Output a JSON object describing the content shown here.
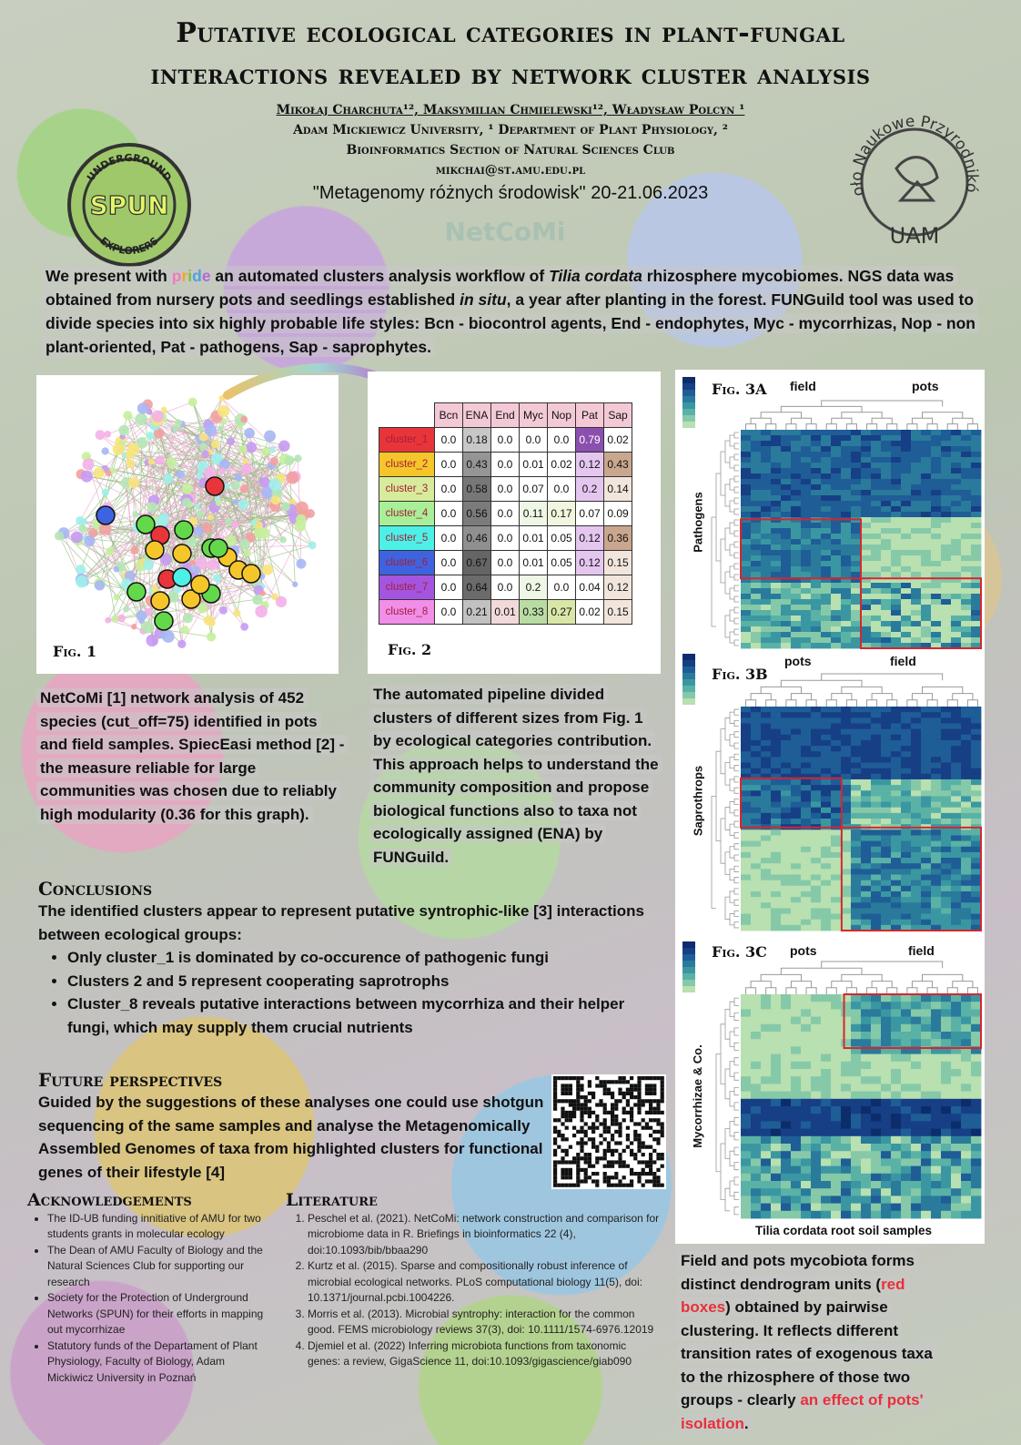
{
  "title_line1": "Putative ecological categories in plant-fungal",
  "title_line2": "interactions revealed by network cluster analysis",
  "authors_line": "Mikołaj Charchuta¹², Maksymilian Chmielewski¹², Władysław Polcyn ¹",
  "affil_line1": "Adam Mickiewicz University, ¹ Department of Plant Physiology, ²",
  "affil_line2": "Bioinformatics Section of Natural Sciences Club",
  "email": "mikchai@st.amu.edu.pl",
  "conference": "\"Metagenomy różnych środowisk\" 20-21.06.2023",
  "logo_left": {
    "top": "UNDERGROUND",
    "center": "SPUN",
    "bottom": "EXPLORERS"
  },
  "logo_right": {
    "text": "Koło Naukowe Przyrodników",
    "bottom": "UAM"
  },
  "netcomi_logo": "NetCoMi",
  "intro": {
    "p1": "We present with ",
    "pride": [
      "p",
      "r",
      "i",
      "d",
      "e"
    ],
    "p2": " an automated clusters analysis workflow of ",
    "species": "Tilia cordata",
    "p3": " rhizosphere mycobiomes. NGS data was obtained from nursery pots and seedlings established ",
    "insitu": "in situ",
    "p4": ", a year after planting in the forest. FUNGuild tool was used to divide species into six highly probable life styles: Bcn - biocontrol agents, End - endophytes, Myc - mycorrhizas, Nop - non plant-oriented, Pat - pathogens, Sap - saprophytes."
  },
  "fig1_label": "Fig. 1",
  "fig2_label": "Fig. 2",
  "fig3a_label": "Fig. 3A",
  "fig3b_label": "Fig. 3B",
  "fig3c_label": "Fig. 3C",
  "fig3a_groups": [
    "field",
    "pots"
  ],
  "fig3b_groups": [
    "pots",
    "field"
  ],
  "fig3c_groups": [
    "pots",
    "field"
  ],
  "fig3a_ylabel": "Pathogens",
  "fig3b_ylabel": "Saprothrops",
  "fig3c_ylabel": "Mycorrhizae & Co.",
  "fig3_xlabel": "Tilia cordata root soil samples",
  "chart_data": {
    "type": "table",
    "columns": [
      "Bcn",
      "ENA",
      "End",
      "Myc",
      "Nop",
      "Pat",
      "Sap"
    ],
    "rows": [
      {
        "name": "cluster_1",
        "color": "#e8353a",
        "values": [
          "0.0",
          "0.18",
          "0.0",
          "0.0",
          "0.0",
          "0.79",
          "0.02"
        ]
      },
      {
        "name": "cluster_2",
        "color": "#f5c62a",
        "values": [
          "0.0",
          "0.43",
          "0.0",
          "0.01",
          "0.02",
          "0.12",
          "0.43"
        ]
      },
      {
        "name": "cluster_3",
        "color": "#d6ec9a",
        "values": [
          "0.0",
          "0.58",
          "0.0",
          "0.07",
          "0.0",
          "0.2",
          "0.14"
        ]
      },
      {
        "name": "cluster_4",
        "color": "#a8ef97",
        "values": [
          "0.0",
          "0.56",
          "0.0",
          "0.11",
          "0.17",
          "0.07",
          "0.09"
        ]
      },
      {
        "name": "cluster_5",
        "color": "#4df0e6",
        "values": [
          "0.0",
          "0.46",
          "0.0",
          "0.01",
          "0.05",
          "0.12",
          "0.36"
        ]
      },
      {
        "name": "cluster_6",
        "color": "#3e63e0",
        "values": [
          "0.0",
          "0.67",
          "0.0",
          "0.01",
          "0.05",
          "0.12",
          "0.15"
        ]
      },
      {
        "name": "cluster_7",
        "color": "#a455e0",
        "values": [
          "0.0",
          "0.64",
          "0.0",
          "0.2",
          "0.0",
          "0.04",
          "0.12"
        ]
      },
      {
        "name": "cluster_8",
        "color": "#f08ee8",
        "values": [
          "0.0",
          "0.21",
          "0.01",
          "0.33",
          "0.27",
          "0.02",
          "0.15"
        ]
      }
    ]
  },
  "fig1_text": "NetCoMi [1] network analysis of 452 species (cut_off=75) identified in pots and field samples. SpiecEasi method [2] - the measure reliable for large communities was chosen due to reliably high modularity (0.36 for this graph).",
  "fig2_text": "The automated pipeline divided clusters of different sizes from Fig. 1 by ecological categories contribution. This approach helps to understand the community composition and propose biological functions also to taxa not ecologically assigned (ENA) by FUNGuild.",
  "conclusions": {
    "heading": "Conclusions",
    "intro": "The identified clusters appear to represent putative syntrophic-like [3] interactions between ecological groups:",
    "items": [
      "Only cluster_1 is dominated by co-occurence of pathogenic fungi",
      "Clusters 2 and 5 represent cooperating saprotrophs",
      "Cluster_8 reveals putative interactions between mycorrhiza and their helper fungi, which may supply them crucial nutrients"
    ]
  },
  "future": {
    "heading": "Future perspectives",
    "text": "Guided by the suggestions of these analyses one could use shotgun sequencing of the same samples and analyse the Metagenomically Assembled Genomes of taxa from highlighted clusters for functional genes of their lifestyle [4]"
  },
  "ack": {
    "heading": "Acknowledgements",
    "items": [
      "The ID-UB funding innitiative of AMU for two students grants in molecular ecology",
      "The Dean of AMU Faculty of Biology and the Natural Sciences Club for supporting our research",
      "Society for the Protection of Underground Networks (SPUN) for their efforts in mapping out mycorrhizae",
      "Statutory funds of the Departament of Plant Physiology, Faculty of Biology, Adam Mickiwicz University in Poznań"
    ]
  },
  "lit": {
    "heading": "Literature",
    "items": [
      "Peschel et al. (2021). NetCoMi: network construction and comparison for microbiome data in R. Briefings in bioinformatics 22 (4), doi:10.1093/bib/bbaa290",
      "Kurtz et al. (2015). Sparse and compositionally robust inference of microbial ecological networks. PLoS computational biology 11(5), doi: 10.1371/journal.pcbi.1004226.",
      "Morris et al. (2013). Microbial syntrophy: interaction for the common good. FEMS microbiology reviews 37(3), doi: 10.1111/1574-6976.12019",
      "Djemiel et al. (2022) Inferring microbiota functions from taxonomic genes: a review, GigaScience 11, doi:10.1093/gigascience/giab090"
    ]
  },
  "fig3_text": {
    "p1": "Field and pots mycobiota forms distinct dendrogram units (",
    "red1": "red boxes",
    "p2": ") obtained by pairwise clustering. It reflects different transition rates of exogenous taxa to the rhizosphere of those two groups - clearly ",
    "red2": "an effect of pots' isolation",
    "p3": "."
  }
}
